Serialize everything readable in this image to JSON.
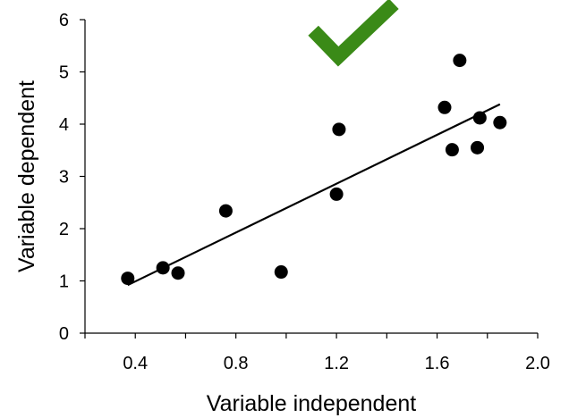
{
  "chart_data": {
    "type": "scatter",
    "title": "",
    "xlabel": "Variable independent",
    "ylabel": "Variable dependent",
    "xlim": [
      0.2,
      2.0
    ],
    "ylim": [
      0,
      6
    ],
    "x_ticks": [
      "0.4",
      "0.8",
      "1.2",
      "1.6",
      "2.0"
    ],
    "x_tick_values": [
      0.4,
      0.8,
      1.2,
      1.6,
      2.0
    ],
    "y_ticks": [
      "0",
      "1",
      "2",
      "3",
      "4",
      "5",
      "6"
    ],
    "y_tick_values": [
      0,
      1,
      2,
      3,
      4,
      5,
      6
    ],
    "grid": false,
    "legend": "none",
    "marker_color": "#000000",
    "trendline": {
      "type": "linear",
      "color": "#000000",
      "x": [
        0.37,
        1.85
      ],
      "y": [
        0.92,
        4.38
      ]
    },
    "points": [
      {
        "x": 0.37,
        "y": 1.05
      },
      {
        "x": 0.51,
        "y": 1.25
      },
      {
        "x": 0.57,
        "y": 1.15
      },
      {
        "x": 0.76,
        "y": 2.34
      },
      {
        "x": 0.98,
        "y": 1.17
      },
      {
        "x": 1.2,
        "y": 2.66
      },
      {
        "x": 1.21,
        "y": 3.9
      },
      {
        "x": 1.63,
        "y": 4.32
      },
      {
        "x": 1.66,
        "y": 3.51
      },
      {
        "x": 1.69,
        "y": 5.22
      },
      {
        "x": 1.76,
        "y": 3.55
      },
      {
        "x": 1.77,
        "y": 4.12
      },
      {
        "x": 1.85,
        "y": 4.03
      }
    ],
    "annotation": {
      "icon": "checkmark-icon",
      "color": "#3a8a17",
      "x": 1.25,
      "y": 5.5
    }
  }
}
